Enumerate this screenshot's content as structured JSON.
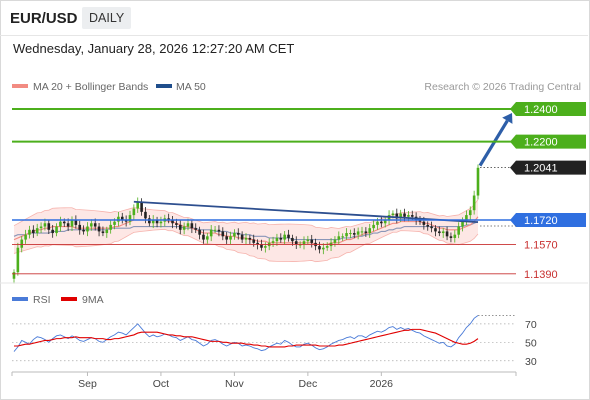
{
  "header": {
    "symbol": "EUR/USD",
    "timeframe": "DAILY"
  },
  "timestamp": "Wednesday, January 28, 2026 12:27:20 AM CET",
  "legend": {
    "ma20": {
      "label": "MA 20 + Bollinger Bands",
      "color": "#f28b82"
    },
    "ma50": {
      "label": "MA 50",
      "color": "#1f4e8c"
    }
  },
  "source": "Research © 2026 Trading Central",
  "rsi_legend": {
    "rsi": {
      "label": "RSI",
      "color": "#4a7bd8"
    },
    "ma9": {
      "label": "9MA",
      "color": "#e00000"
    }
  },
  "chart_data": [
    {
      "type": "candlestick",
      "title": "EUR/USD",
      "timeframe": "DAILY",
      "y_range": [
        1.134,
        1.248
      ],
      "current_price": 1.2041,
      "levels": [
        {
          "value": 1.24,
          "label": "1.2400",
          "kind": "resistance",
          "color": "#4caf1c"
        },
        {
          "value": 1.22,
          "label": "1.2200",
          "kind": "resistance",
          "color": "#4caf1c"
        },
        {
          "value": 1.172,
          "label": "1.1720",
          "kind": "pivot",
          "color": "#2f6fe0"
        },
        {
          "value": 1.157,
          "label": "1.1570",
          "kind": "support",
          "color": "#c83030"
        },
        {
          "value": 1.139,
          "label": "1.1390",
          "kind": "support",
          "color": "#c83030"
        }
      ],
      "x_ticks": [
        "Sep",
        "Oct",
        "Nov",
        "Dec",
        "2026"
      ],
      "series_close": [
        1.14,
        1.155,
        1.16,
        1.163,
        1.166,
        1.164,
        1.167,
        1.168,
        1.17,
        1.166,
        1.164,
        1.168,
        1.171,
        1.17,
        1.168,
        1.172,
        1.169,
        1.166,
        1.165,
        1.168,
        1.17,
        1.168,
        1.165,
        1.164,
        1.166,
        1.169,
        1.171,
        1.174,
        1.172,
        1.171,
        1.175,
        1.179,
        1.183,
        1.177,
        1.173,
        1.17,
        1.172,
        1.17,
        1.171,
        1.173,
        1.172,
        1.17,
        1.169,
        1.166,
        1.168,
        1.17,
        1.167,
        1.166,
        1.163,
        1.16,
        1.162,
        1.166,
        1.166,
        1.165,
        1.162,
        1.16,
        1.162,
        1.164,
        1.163,
        1.16,
        1.161,
        1.16,
        1.158,
        1.157,
        1.155,
        1.156,
        1.158,
        1.159,
        1.161,
        1.16,
        1.163,
        1.161,
        1.159,
        1.157,
        1.157,
        1.159,
        1.16,
        1.158,
        1.156,
        1.154,
        1.155,
        1.156,
        1.158,
        1.16,
        1.162,
        1.162,
        1.164,
        1.164,
        1.163,
        1.165,
        1.165,
        1.164,
        1.167,
        1.169,
        1.171,
        1.17,
        1.172,
        1.175,
        1.176,
        1.173,
        1.176,
        1.174,
        1.175,
        1.174,
        1.172,
        1.171,
        1.169,
        1.168,
        1.167,
        1.165,
        1.164,
        1.165,
        1.162,
        1.161,
        1.163,
        1.168,
        1.171,
        1.175,
        1.178,
        1.187,
        1.204
      ],
      "ma20": [
        1.16,
        1.161,
        1.162,
        1.163,
        1.164,
        1.165,
        1.166,
        1.166,
        1.167,
        1.167,
        1.168,
        1.168,
        1.168,
        1.168,
        1.168,
        1.168,
        1.167,
        1.167,
        1.167,
        1.167,
        1.167,
        1.167,
        1.167,
        1.167,
        1.167,
        1.167,
        1.168,
        1.168,
        1.169,
        1.17,
        1.171,
        1.172,
        1.172,
        1.172,
        1.172,
        1.172,
        1.172,
        1.172,
        1.172,
        1.172,
        1.171,
        1.171,
        1.17,
        1.169,
        1.168,
        1.168,
        1.167,
        1.166,
        1.165,
        1.164,
        1.164,
        1.164,
        1.164,
        1.163,
        1.163,
        1.162,
        1.162,
        1.162,
        1.161,
        1.161,
        1.161,
        1.16,
        1.16,
        1.159,
        1.159,
        1.159,
        1.158,
        1.158,
        1.158,
        1.158,
        1.158,
        1.158,
        1.158,
        1.158,
        1.158,
        1.158,
        1.158,
        1.158,
        1.157,
        1.157,
        1.157,
        1.157,
        1.158,
        1.158,
        1.158,
        1.159,
        1.16,
        1.16,
        1.161,
        1.162,
        1.163,
        1.164,
        1.164,
        1.165,
        1.166,
        1.167,
        1.168,
        1.169,
        1.17,
        1.17,
        1.171,
        1.171,
        1.171,
        1.171,
        1.171,
        1.171,
        1.17,
        1.17,
        1.169,
        1.168,
        1.167,
        1.167,
        1.166,
        1.166,
        1.166,
        1.166,
        1.167,
        1.168,
        1.169,
        1.171,
        1.174
      ],
      "ma50": [
        1.162,
        1.163,
        1.163,
        1.163,
        1.164,
        1.164,
        1.164,
        1.164,
        1.164,
        1.164,
        1.165,
        1.165,
        1.165,
        1.165,
        1.166,
        1.166,
        1.166,
        1.166,
        1.166,
        1.166,
        1.166,
        1.166,
        1.166,
        1.166,
        1.166,
        1.167,
        1.167,
        1.167,
        1.167,
        1.167,
        1.167,
        1.168,
        1.168,
        1.168,
        1.168,
        1.168,
        1.168,
        1.168,
        1.168,
        1.168,
        1.168,
        1.168,
        1.168,
        1.168,
        1.167,
        1.167,
        1.167,
        1.167,
        1.166,
        1.166,
        1.166,
        1.166,
        1.165,
        1.165,
        1.165,
        1.165,
        1.164,
        1.164,
        1.164,
        1.163,
        1.163,
        1.163,
        1.162,
        1.162,
        1.162,
        1.162,
        1.161,
        1.161,
        1.161,
        1.161,
        1.161,
        1.161,
        1.16,
        1.16,
        1.16,
        1.16,
        1.16,
        1.16,
        1.16,
        1.16,
        1.16,
        1.16,
        1.16,
        1.16,
        1.16,
        1.161,
        1.161,
        1.161,
        1.162,
        1.162,
        1.162,
        1.163,
        1.163,
        1.164,
        1.164,
        1.165,
        1.165,
        1.166,
        1.166,
        1.167,
        1.167,
        1.168,
        1.168,
        1.168,
        1.168,
        1.168,
        1.168,
        1.168,
        1.168,
        1.168,
        1.168,
        1.168,
        1.168,
        1.168,
        1.168,
        1.168,
        1.168,
        1.169,
        1.169,
        1.17,
        1.171
      ],
      "trendline": {
        "start": 1.1832,
        "end": 1.1707
      },
      "projection": {
        "from": 1.2041,
        "to": 1.24
      }
    },
    {
      "type": "line",
      "title": "RSI",
      "y_range": [
        20,
        85
      ],
      "y_ticks": [
        70,
        50,
        30
      ],
      "series": [
        {
          "name": "RSI",
          "values": [
            40,
            45,
            52,
            50,
            48,
            53,
            56,
            55,
            53,
            50,
            54,
            57,
            58,
            56,
            54,
            57,
            55,
            52,
            51,
            53,
            55,
            54,
            51,
            50,
            53,
            56,
            58,
            61,
            60,
            58,
            62,
            66,
            70,
            65,
            60,
            56,
            58,
            56,
            57,
            59,
            58,
            56,
            55,
            52,
            54,
            56,
            53,
            52,
            49,
            46,
            48,
            52,
            53,
            51,
            48,
            46,
            48,
            50,
            49,
            46,
            47,
            46,
            44,
            43,
            41,
            42,
            45,
            47,
            49,
            48,
            52,
            50,
            47,
            45,
            45,
            48,
            49,
            47,
            44,
            42,
            43,
            45,
            48,
            50,
            52,
            53,
            55,
            56,
            54,
            57,
            57,
            55,
            58,
            60,
            62,
            61,
            63,
            66,
            67,
            64,
            66,
            64,
            65,
            63,
            61,
            60,
            57,
            55,
            53,
            51,
            49,
            50,
            46,
            45,
            48,
            55,
            60,
            66,
            70,
            76,
            79
          ]
        },
        {
          "name": "9MA",
          "values": [
            46,
            46,
            47,
            48,
            48,
            49,
            50,
            51,
            52,
            52,
            53,
            54,
            54,
            55,
            55,
            55,
            56,
            55,
            55,
            55,
            55,
            54,
            54,
            54,
            53,
            53,
            54,
            54,
            55,
            56,
            57,
            58,
            60,
            61,
            61,
            61,
            61,
            61,
            60,
            59,
            58,
            58,
            57,
            57,
            56,
            56,
            56,
            55,
            54,
            53,
            52,
            51,
            51,
            51,
            50,
            50,
            49,
            49,
            49,
            49,
            48,
            48,
            47,
            47,
            46,
            46,
            45,
            45,
            45,
            45,
            45,
            46,
            46,
            47,
            47,
            47,
            47,
            47,
            47,
            46,
            46,
            46,
            46,
            46,
            47,
            47,
            48,
            49,
            50,
            51,
            52,
            53,
            54,
            55,
            56,
            57,
            58,
            59,
            60,
            61,
            62,
            63,
            63,
            64,
            64,
            64,
            63,
            62,
            61,
            60,
            58,
            56,
            54,
            52,
            50,
            49,
            48,
            48,
            49,
            51,
            54
          ]
        }
      ]
    }
  ]
}
